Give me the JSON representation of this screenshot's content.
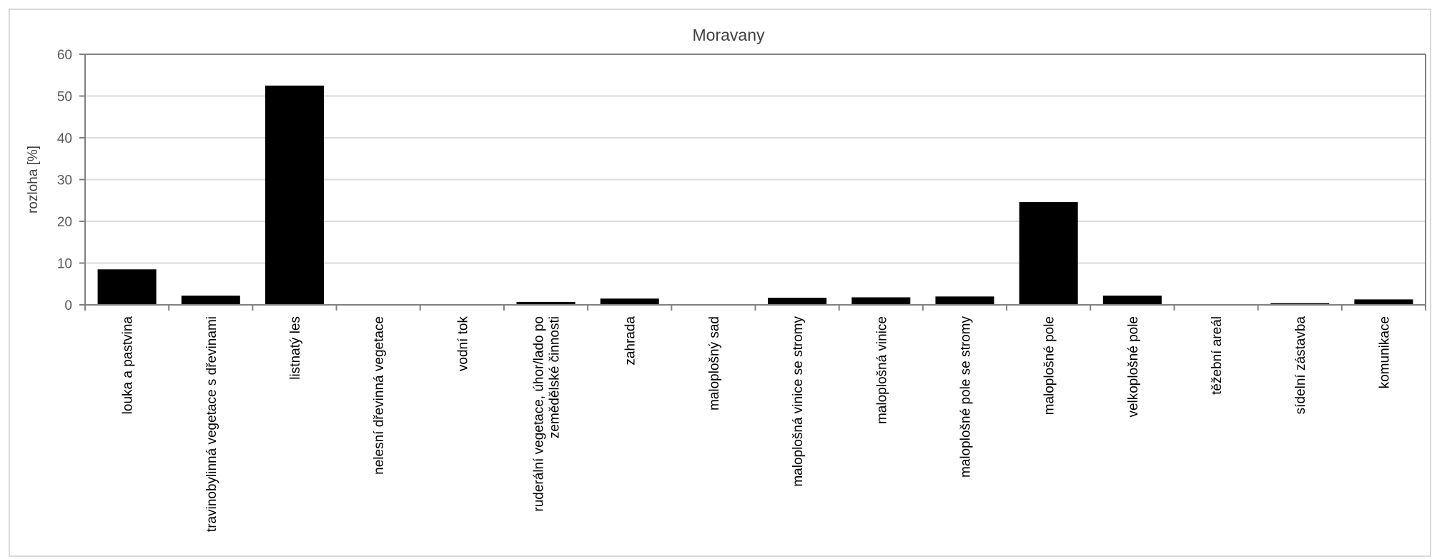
{
  "chart_data": {
    "type": "bar",
    "title": "Moravany",
    "xlabel": "",
    "ylabel": "rozloha [%]",
    "ylim": [
      0,
      60
    ],
    "yticks": [
      0,
      10,
      20,
      30,
      40,
      50,
      60
    ],
    "grid": true,
    "legend": "none",
    "bar_color": "#000000",
    "grid_color": "#d9d9d9",
    "categories": [
      [
        "louka a pastvina"
      ],
      [
        "travinobylinná vegetace s dřevinami"
      ],
      [
        "listnatý les"
      ],
      [
        "nelesní dřevinná vegetace"
      ],
      [
        "vodní tok"
      ],
      [
        "ruderální vegetace, úhor/lado po",
        "zemědělské činnosti"
      ],
      [
        "zahrada"
      ],
      [
        "maloplošný sad"
      ],
      [
        "maloplošná vinice se stromy"
      ],
      [
        "maloplošná vinice"
      ],
      [
        "maloplošné pole se stromy"
      ],
      [
        "maloplošné pole"
      ],
      [
        "velkoplošné pole"
      ],
      [
        "těžební areál"
      ],
      [
        "sídelní zástavba"
      ],
      [
        "komunikace"
      ]
    ],
    "values": [
      8.5,
      2.2,
      52.5,
      0,
      0,
      0.7,
      1.5,
      0,
      1.7,
      1.8,
      2.0,
      24.6,
      2.2,
      0,
      0.4,
      1.3
    ]
  }
}
